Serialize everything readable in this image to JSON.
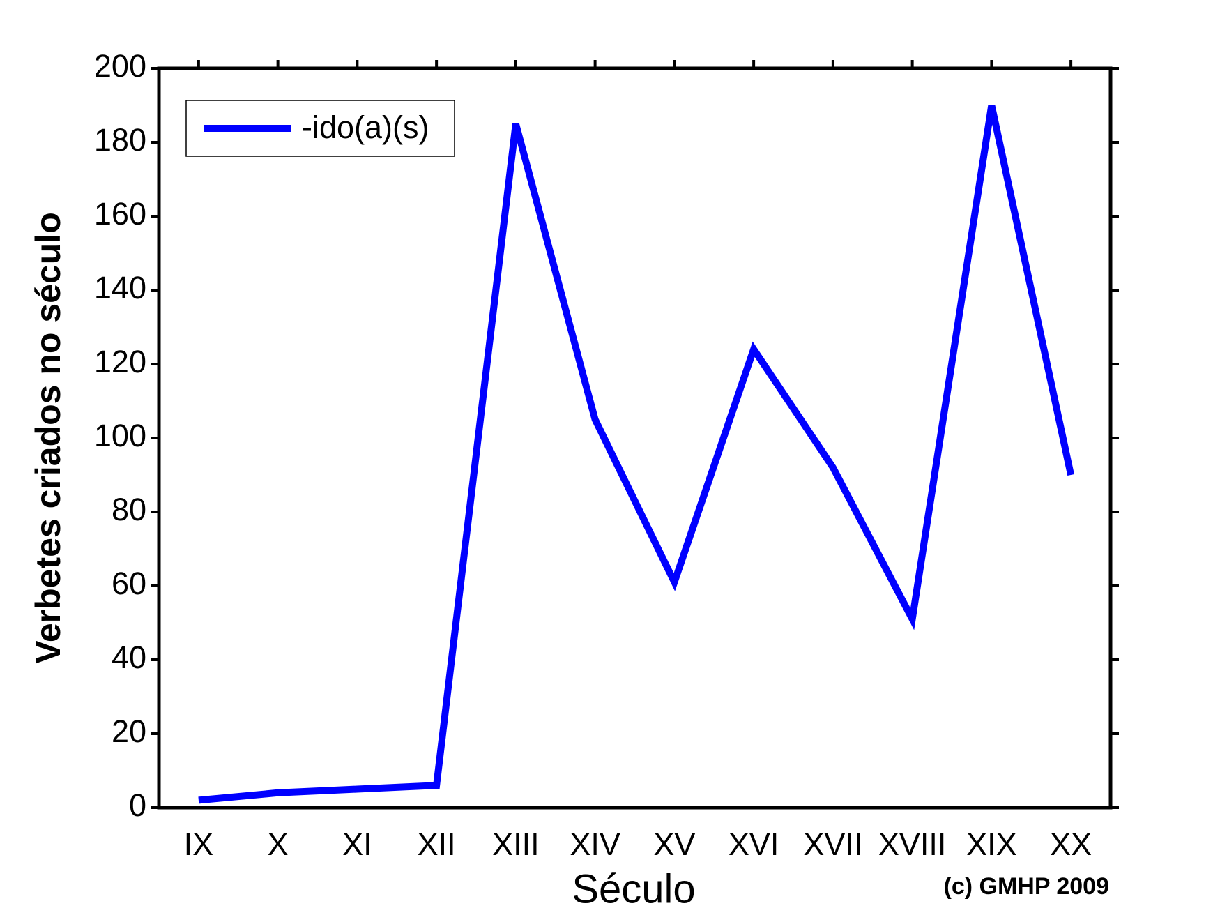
{
  "chart_data": {
    "type": "line",
    "x_label": "Século",
    "y_label": "Verbetes criados no século",
    "annotation": "(c) GMHP 2009",
    "categories": [
      "IX",
      "X",
      "XI",
      "XII",
      "XIII",
      "XIV",
      "XV",
      "XVI",
      "XVII",
      "XVIII",
      "XIX",
      "XX"
    ],
    "series": [
      {
        "name": "-ido(a)(s)",
        "color": "#0000ff",
        "values": [
          2,
          4,
          5,
          6,
          185,
          105,
          61,
          124,
          92,
          51,
          190,
          90
        ]
      }
    ],
    "ylim": [
      0,
      200
    ],
    "yticks": [
      0,
      20,
      40,
      60,
      80,
      100,
      120,
      140,
      160,
      180,
      200
    ],
    "legend": "upper left"
  }
}
